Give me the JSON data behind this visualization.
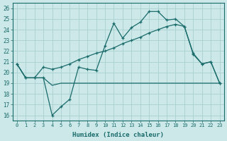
{
  "xlabel": "Humidex (Indice chaleur)",
  "ylabel": "",
  "xlim": [
    -0.5,
    23.5
  ],
  "ylim": [
    15.5,
    26.5
  ],
  "xticks": [
    0,
    1,
    2,
    3,
    4,
    5,
    6,
    7,
    8,
    9,
    10,
    11,
    12,
    13,
    14,
    15,
    16,
    17,
    18,
    19,
    20,
    21,
    22,
    23
  ],
  "yticks": [
    16,
    17,
    18,
    19,
    20,
    21,
    22,
    23,
    24,
    25,
    26
  ],
  "background_color": "#cce8e8",
  "grid_color": "#a8d0d0",
  "line_color": "#1a6b6b",
  "line1_x": [
    0,
    1,
    2,
    3,
    4,
    5,
    6,
    7,
    8,
    9,
    10,
    11,
    12,
    13,
    14,
    15,
    16,
    17,
    18,
    19,
    20,
    21,
    22,
    23
  ],
  "line1_y": [
    20.8,
    19.5,
    19.5,
    19.5,
    18.8,
    19.0,
    19.0,
    19.0,
    19.0,
    19.0,
    19.0,
    19.0,
    19.0,
    19.0,
    19.0,
    19.0,
    19.0,
    19.0,
    19.0,
    19.0,
    19.0,
    19.0,
    19.0,
    19.0
  ],
  "line2_x": [
    0,
    1,
    2,
    3,
    4,
    5,
    6,
    7,
    8,
    9,
    10,
    11,
    12,
    13,
    14,
    15,
    16,
    17,
    18,
    19,
    20,
    21,
    22,
    23
  ],
  "line2_y": [
    20.8,
    19.5,
    19.5,
    19.5,
    16.0,
    16.8,
    17.5,
    20.5,
    20.3,
    20.2,
    22.5,
    24.6,
    23.2,
    24.2,
    24.7,
    25.7,
    25.7,
    24.9,
    25.0,
    24.3,
    21.7,
    20.8,
    21.0,
    19.0
  ],
  "line3_x": [
    0,
    1,
    2,
    3,
    4,
    5,
    6,
    7,
    8,
    9,
    10,
    11,
    12,
    13,
    14,
    15,
    16,
    17,
    18,
    19,
    20,
    21,
    22,
    23
  ],
  "line3_y": [
    20.8,
    19.5,
    19.5,
    20.5,
    20.3,
    20.5,
    20.8,
    21.2,
    21.5,
    21.8,
    22.0,
    22.3,
    22.7,
    23.0,
    23.3,
    23.7,
    24.0,
    24.3,
    24.5,
    24.3,
    21.8,
    20.8,
    21.0,
    19.0
  ]
}
